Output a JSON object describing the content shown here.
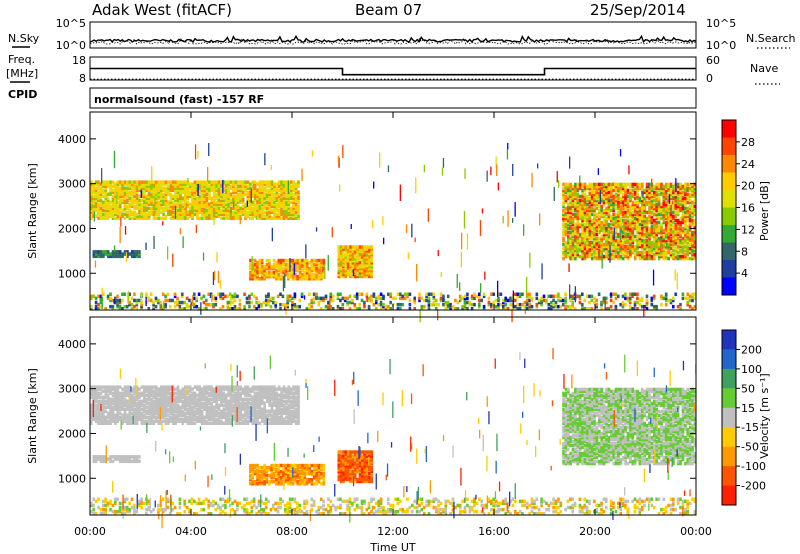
{
  "header": {
    "station": "Adak West (fitACF)",
    "beam": "Beam 07",
    "date": "25/Sep/2014"
  },
  "noise_panel": {
    "left_label": "N.Sky",
    "right_label": "N.Search",
    "left_ticks": [
      "10^5",
      "10^0"
    ],
    "right_ticks": [
      "10^5",
      "10^0"
    ]
  },
  "freq_panel": {
    "left_label_top": "Freq.",
    "left_label_unit": "[MHz]",
    "right_label": "Nave",
    "left_ticks": [
      "18",
      "8"
    ],
    "right_ticks": [
      "60",
      "0"
    ],
    "cpid_label": "CPID",
    "program": "normalsound (fast) -157 RF"
  },
  "x_axis": {
    "label": "Time UT",
    "ticks": [
      "00:00",
      "04:00",
      "08:00",
      "12:00",
      "16:00",
      "20:00",
      "00:00"
    ]
  },
  "power_colorbar": {
    "label": "Power [dB]",
    "ticks": [
      "28",
      "24",
      "20",
      "16",
      "12",
      "8",
      "4"
    ],
    "colors": [
      "#ff0000",
      "#ff4400",
      "#ff8800",
      "#ffcc00",
      "#e0e000",
      "#88cc00",
      "#33aa33",
      "#336666",
      "#1f3fa0",
      "#0000ff"
    ]
  },
  "velocity_colorbar": {
    "label": "Velocity [m s⁻¹]",
    "ticks": [
      "200",
      "100",
      "50",
      "15",
      "-15",
      "-50",
      "-100",
      "-200"
    ],
    "colors": [
      "#2233bb",
      "#2266cc",
      "#3fa060",
      "#66cc33",
      "#c0c0c0",
      "#ffcc00",
      "#ff9900",
      "#ff5500",
      "#ff2200"
    ]
  },
  "chart_data": [
    {
      "type": "line",
      "name": "noise",
      "x_range_hours": [
        0,
        24
      ],
      "ylim_log10": [
        0,
        5
      ],
      "series": [
        {
          "name": "N.Sky",
          "style": "solid",
          "level_log10": 1.4
        },
        {
          "name": "N.Search",
          "style": "dotted",
          "level_log10": 1.0
        }
      ]
    },
    {
      "type": "line",
      "name": "frequency",
      "x_range_hours": [
        0,
        24
      ],
      "series": [
        {
          "name": "Freq.",
          "style": "solid",
          "ylim": [
            8,
            18
          ],
          "x": [
            0,
            10.0,
            10.0,
            18.0,
            18.0,
            24.0
          ],
          "y": [
            13.0,
            13.0,
            10.3,
            10.3,
            13.0,
            13.0
          ]
        },
        {
          "name": "Nave",
          "style": "dotted",
          "ylim": [
            0,
            60
          ],
          "x": [
            0,
            24
          ],
          "y": [
            2,
            2
          ]
        }
      ]
    },
    {
      "type": "heatmap",
      "name": "power",
      "x_range_hours": [
        0,
        24
      ],
      "ylim_km": [
        180,
        4600
      ],
      "yticks_km": [
        1000,
        2000,
        3000,
        4000
      ],
      "ylabel": "Slant Range [km]",
      "regions": [
        {
          "x0": 0.0,
          "x1": 8.3,
          "y0": 2200,
          "y1": 3050,
          "levels": [
            4,
            7
          ],
          "density": 0.85
        },
        {
          "x0": 0.1,
          "x1": 2.0,
          "y0": 1350,
          "y1": 1500,
          "levels": [
            1,
            3
          ],
          "density": 0.9
        },
        {
          "x0": 6.3,
          "x1": 9.3,
          "y0": 850,
          "y1": 1300,
          "levels": [
            5,
            8
          ],
          "density": 0.8
        },
        {
          "x0": 9.8,
          "x1": 11.2,
          "y0": 900,
          "y1": 1600,
          "levels": [
            4,
            8
          ],
          "density": 0.9
        },
        {
          "x0": 18.7,
          "x1": 24.0,
          "y0": 1300,
          "y1": 3000,
          "levels": [
            3,
            9
          ],
          "density": 0.8
        },
        {
          "x0": 0.0,
          "x1": 24.0,
          "y0": 180,
          "y1": 550,
          "levels": [
            0,
            8
          ],
          "density": 0.35
        }
      ]
    },
    {
      "type": "heatmap",
      "name": "velocity",
      "x_range_hours": [
        0,
        24
      ],
      "ylim_km": [
        180,
        4600
      ],
      "yticks_km": [
        1000,
        2000,
        3000,
        4000
      ],
      "ylabel": "Slant Range [km]",
      "regions": [
        {
          "x0": 0.0,
          "x1": 8.3,
          "y0": 2200,
          "y1": 3050,
          "levels": [
            4,
            4
          ],
          "density": 0.85
        },
        {
          "x0": 0.1,
          "x1": 2.0,
          "y0": 1350,
          "y1": 1500,
          "levels": [
            4,
            4
          ],
          "density": 0.9
        },
        {
          "x0": 6.3,
          "x1": 9.3,
          "y0": 850,
          "y1": 1300,
          "levels": [
            5,
            7
          ],
          "density": 0.8
        },
        {
          "x0": 9.8,
          "x1": 11.2,
          "y0": 900,
          "y1": 1600,
          "levels": [
            6,
            8
          ],
          "density": 0.9
        },
        {
          "x0": 18.7,
          "x1": 24.0,
          "y0": 1300,
          "y1": 3000,
          "levels": [
            3,
            4
          ],
          "density": 0.8
        },
        {
          "x0": 0.0,
          "x1": 24.0,
          "y0": 180,
          "y1": 550,
          "levels": [
            3,
            6
          ],
          "density": 0.35
        }
      ]
    }
  ]
}
